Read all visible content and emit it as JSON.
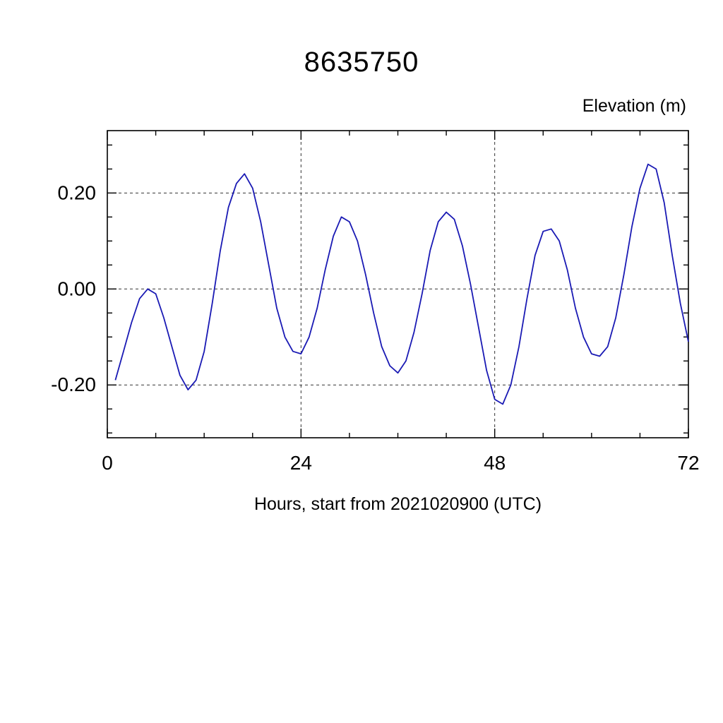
{
  "title": "8635750",
  "y_axis_title": "Elevation (m)",
  "x_axis_title": "Hours, start from 2021020900 (UTC)",
  "chart_data": {
    "type": "line",
    "title": "8635750",
    "xlabel": "Hours, start from 2021020900 (UTC)",
    "ylabel": "Elevation (m)",
    "line_color": "#1a1ab4",
    "grid": true,
    "grid_style": "dashed",
    "xlim": [
      0,
      72
    ],
    "ylim": [
      -0.31,
      0.33
    ],
    "x_major_ticks": [
      0,
      24,
      48,
      72
    ],
    "x_tick_labels": [
      "0",
      "24",
      "48",
      "72"
    ],
    "x_minor_step": 6,
    "y_major_ticks": [
      -0.2,
      0.0,
      0.2
    ],
    "y_tick_labels": [
      "-0.20",
      "0.00",
      "0.20"
    ],
    "y_minor_step": 0.05,
    "grid_x": [
      24,
      48
    ],
    "grid_y": [
      -0.2,
      0.0,
      0.2
    ],
    "x": [
      1,
      2,
      3,
      4,
      5,
      6,
      7,
      8,
      9,
      10,
      11,
      12,
      13,
      14,
      15,
      16,
      17,
      18,
      19,
      20,
      21,
      22,
      23,
      24,
      25,
      26,
      27,
      28,
      29,
      30,
      31,
      32,
      33,
      34,
      35,
      36,
      37,
      38,
      39,
      40,
      41,
      42,
      43,
      44,
      45,
      46,
      47,
      48,
      49,
      50,
      51,
      52,
      53,
      54,
      55,
      56,
      57,
      58,
      59,
      60,
      61,
      62,
      63,
      64,
      65,
      66,
      67,
      68,
      69,
      70,
      71,
      72
    ],
    "values": [
      -0.19,
      -0.13,
      -0.07,
      -0.02,
      0.0,
      -0.01,
      -0.06,
      -0.12,
      -0.18,
      -0.21,
      -0.19,
      -0.13,
      -0.03,
      0.08,
      0.17,
      0.22,
      0.24,
      0.21,
      0.14,
      0.05,
      -0.04,
      -0.1,
      -0.13,
      -0.135,
      -0.1,
      -0.04,
      0.04,
      0.11,
      0.15,
      0.14,
      0.1,
      0.03,
      -0.05,
      -0.12,
      -0.16,
      -0.175,
      -0.15,
      -0.09,
      -0.01,
      0.08,
      0.14,
      0.16,
      0.145,
      0.09,
      0.01,
      -0.08,
      -0.17,
      -0.23,
      -0.24,
      -0.2,
      -0.12,
      -0.02,
      0.07,
      0.12,
      0.125,
      0.1,
      0.04,
      -0.04,
      -0.1,
      -0.135,
      -0.14,
      -0.12,
      -0.06,
      0.03,
      0.13,
      0.21,
      0.26,
      0.25,
      0.18,
      0.07,
      -0.03,
      -0.11
    ]
  }
}
